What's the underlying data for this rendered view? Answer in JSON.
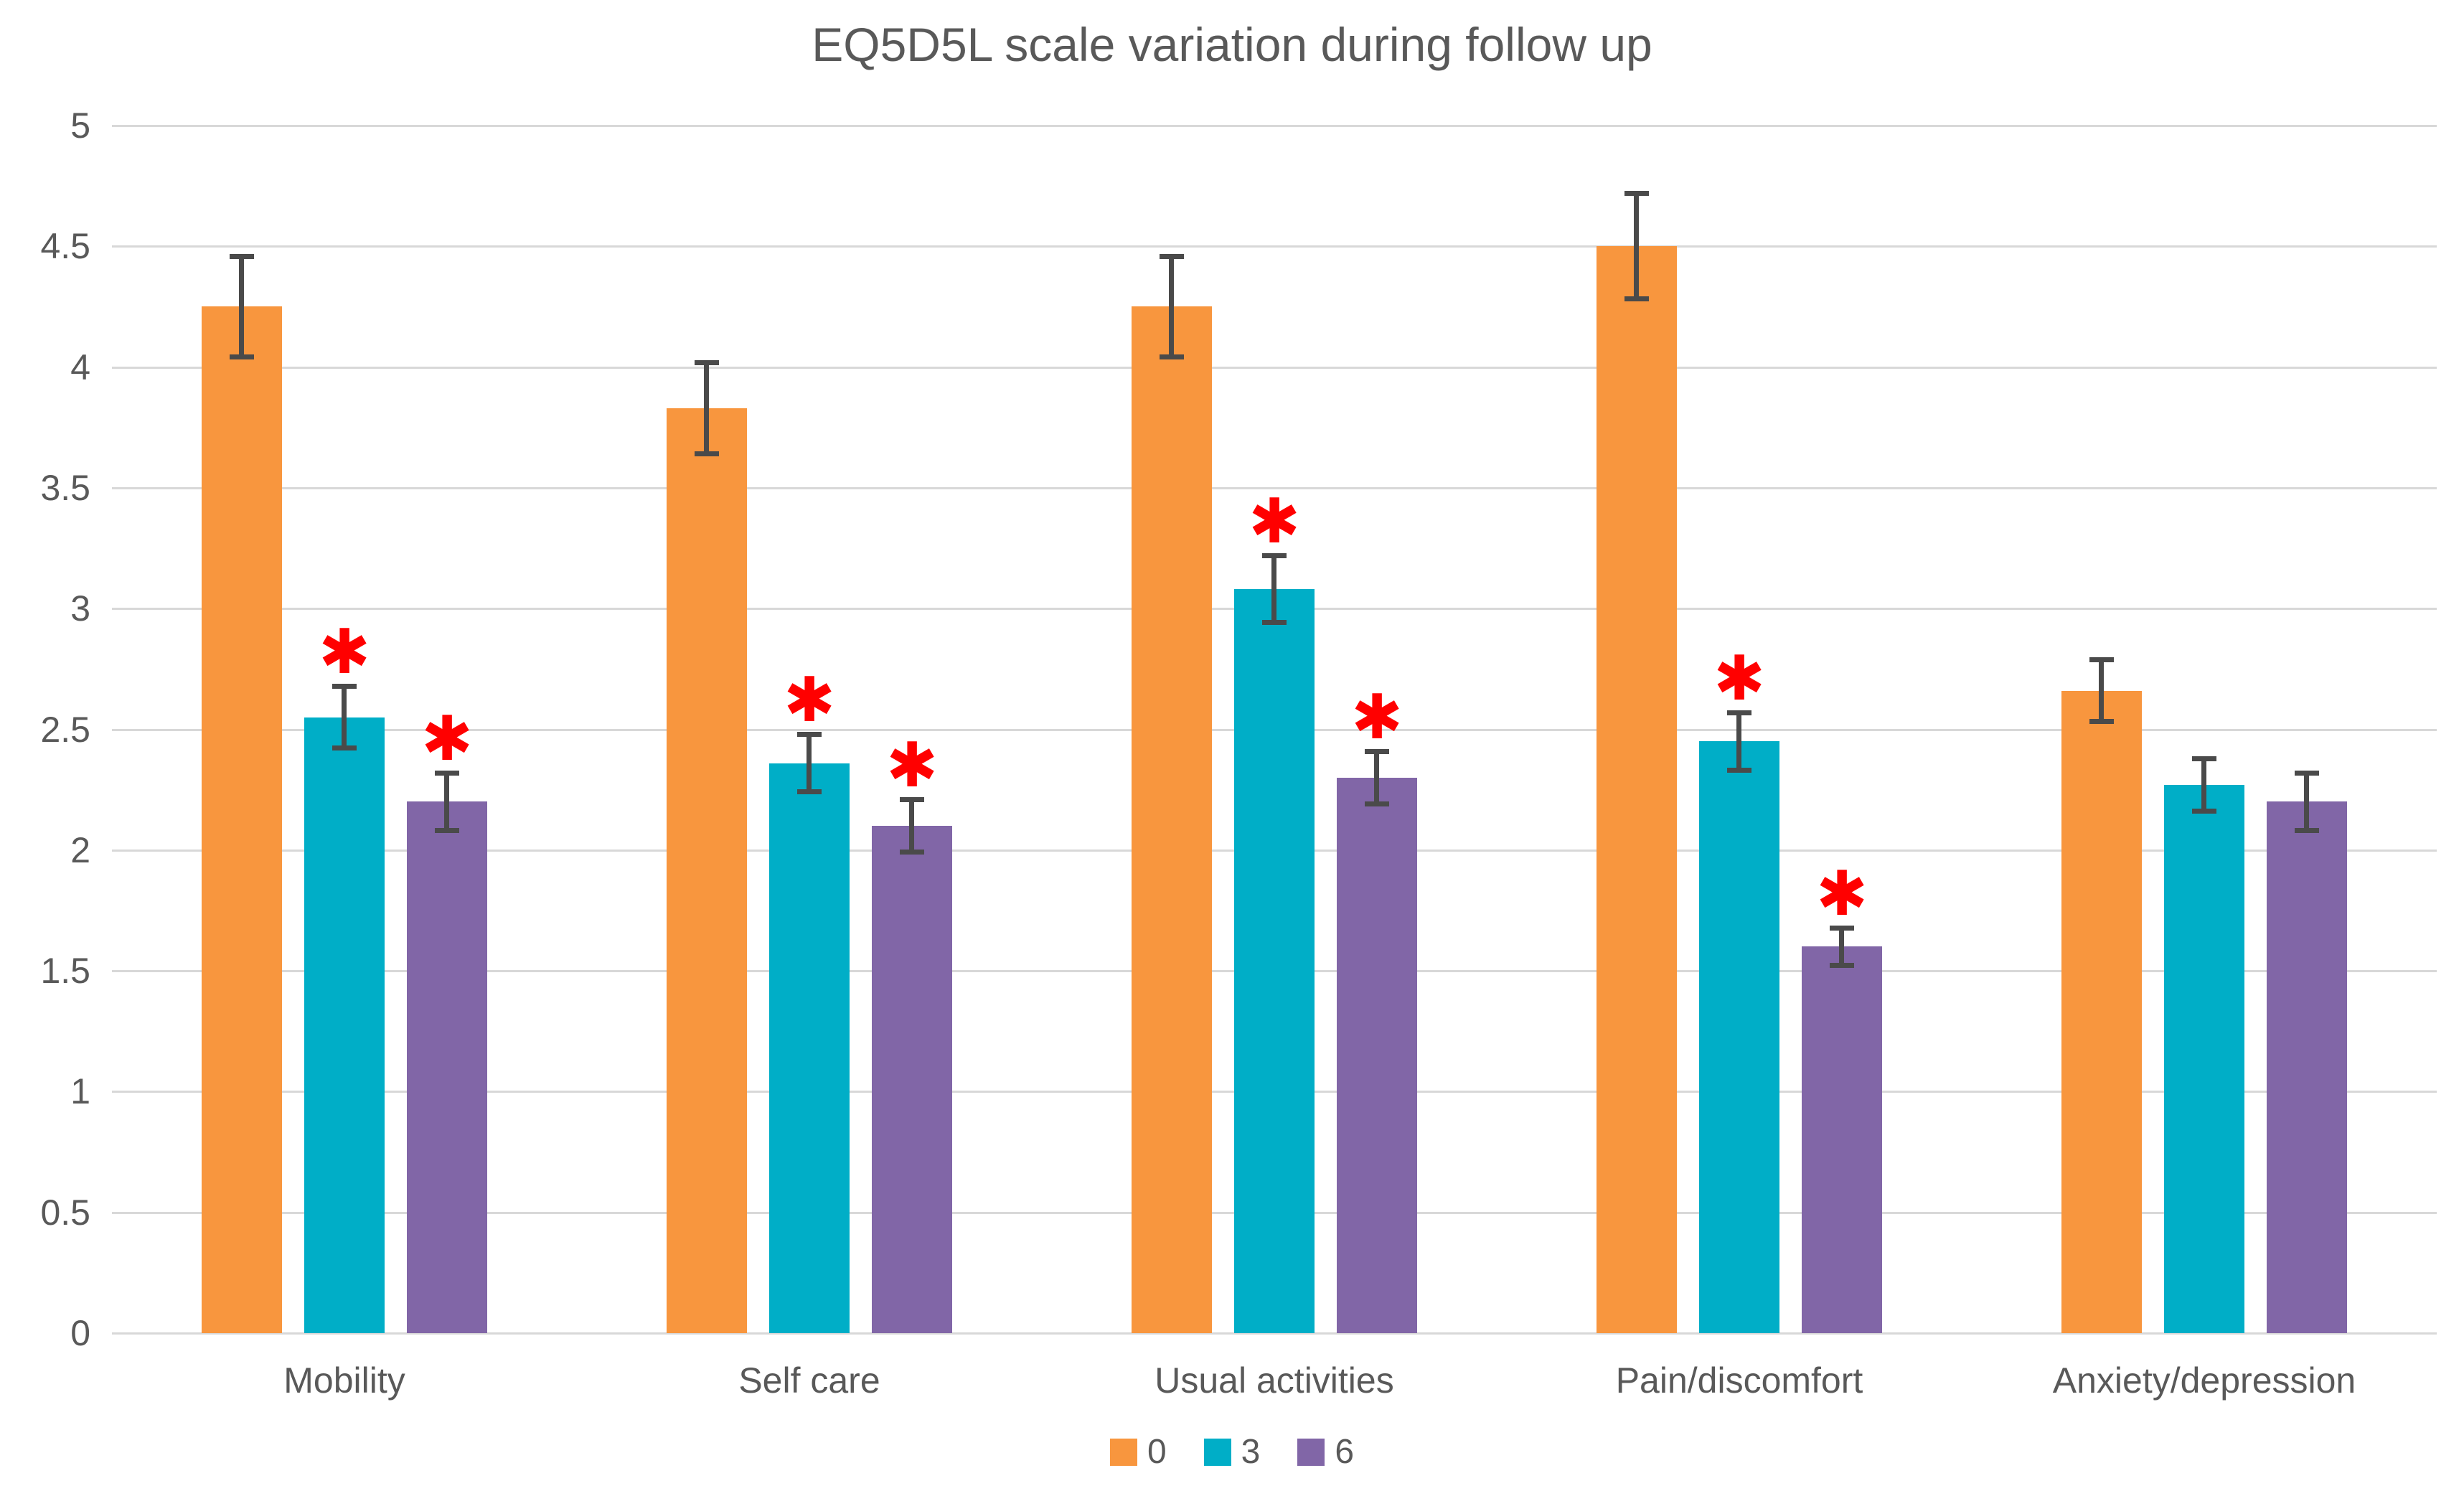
{
  "chart_data": {
    "type": "bar",
    "title": "EQ5D5L scale variation during follow up",
    "categories": [
      "Mobility",
      "Self care",
      "Usual activities",
      "Pain/discomfort",
      "Anxiety/depression"
    ],
    "series": [
      {
        "name": "0",
        "color": "#F8963E",
        "values": [
          4.25,
          3.83,
          4.25,
          4.5,
          2.66
        ],
        "errors": [
          0.21,
          0.19,
          0.21,
          0.22,
          0.13
        ],
        "significant": [
          false,
          false,
          false,
          false,
          false
        ]
      },
      {
        "name": "3",
        "color": "#00AEC7",
        "values": [
          2.55,
          2.36,
          3.08,
          2.45,
          2.27
        ],
        "errors": [
          0.13,
          0.12,
          0.14,
          0.12,
          0.11
        ],
        "significant": [
          true,
          true,
          true,
          true,
          false
        ]
      },
      {
        "name": "6",
        "color": "#8166A7",
        "values": [
          2.2,
          2.1,
          2.3,
          1.6,
          2.2
        ],
        "errors": [
          0.12,
          0.11,
          0.11,
          0.08,
          0.12
        ],
        "significant": [
          true,
          true,
          true,
          true,
          false
        ]
      }
    ],
    "ylim": [
      0,
      5
    ],
    "ytick_step": 0.5,
    "yticks": [
      "5",
      "4.5",
      "4",
      "3.5",
      "3",
      "2.5",
      "2",
      "1.5",
      "1",
      "0.5",
      "0"
    ],
    "xlabel": "",
    "ylabel": "",
    "grid": true,
    "legend_position": "bottom",
    "error_bars": true,
    "significance_marker": "✱",
    "significance_color": "#FF0000",
    "gridline_color": "#D8D8D8",
    "text_color": "#595959",
    "error_bar_color": "#4A4A4A"
  }
}
